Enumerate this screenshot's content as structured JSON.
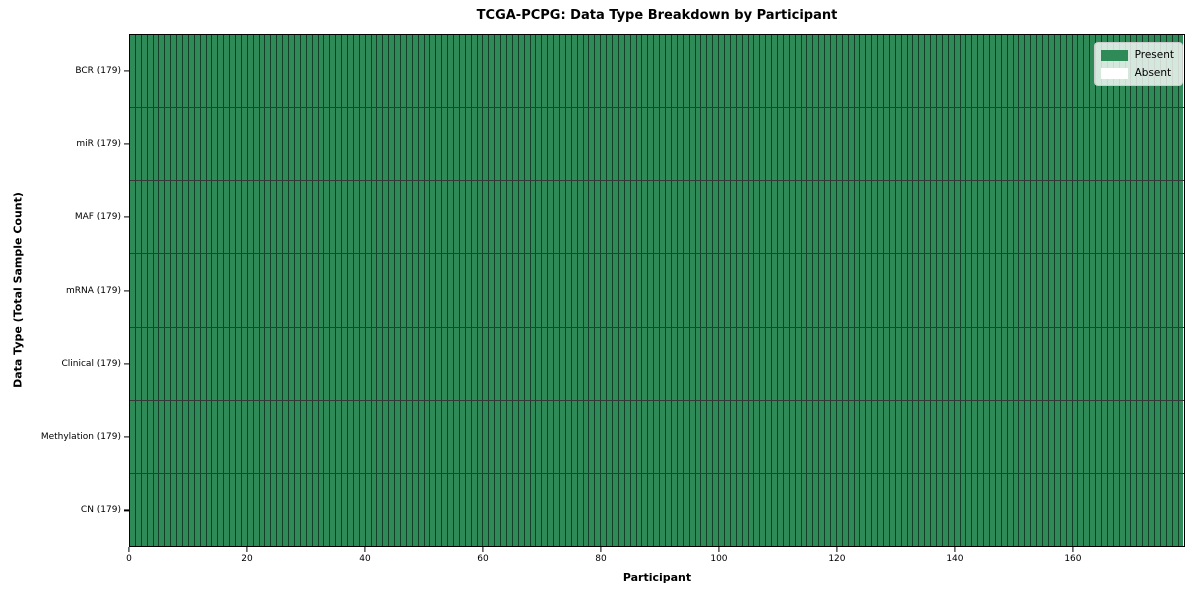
{
  "chart_data": {
    "type": "heatmap",
    "title": "TCGA-PCPG: Data Type Breakdown by Participant",
    "xlabel": "Participant",
    "ylabel": "Data Type (Total Sample Count)",
    "n_participants": 179,
    "xlim": [
      0,
      179
    ],
    "x_ticks": [
      0,
      20,
      40,
      60,
      80,
      100,
      120,
      140,
      160
    ],
    "grid": false,
    "rows": [
      {
        "label": "BCR (179)",
        "data_type": "BCR",
        "total_samples": 179,
        "present_count": 179,
        "absent_count": 0
      },
      {
        "label": "miR (179)",
        "data_type": "miR",
        "total_samples": 179,
        "present_count": 179,
        "absent_count": 0
      },
      {
        "label": "MAF (179)",
        "data_type": "MAF",
        "total_samples": 179,
        "present_count": 179,
        "absent_count": 0
      },
      {
        "label": "mRNA (179)",
        "data_type": "mRNA",
        "total_samples": 179,
        "present_count": 179,
        "absent_count": 0
      },
      {
        "label": "Clinical (179)",
        "data_type": "Clinical",
        "total_samples": 179,
        "present_count": 179,
        "absent_count": 0
      },
      {
        "label": "Methylation (179)",
        "data_type": "Methylation",
        "total_samples": 179,
        "present_count": 179,
        "absent_count": 0
      },
      {
        "label": "CN (179)",
        "data_type": "CN",
        "total_samples": 179,
        "present_count": 179,
        "absent_count": 0
      }
    ],
    "legend": {
      "position": "upper right",
      "entries": [
        {
          "label": "Present",
          "color": "#2e8b57"
        },
        {
          "label": "Absent",
          "color": "#ffffff"
        }
      ]
    },
    "colors": {
      "present": "#2e8b57",
      "absent": "#ffffff",
      "cell_edge": "rgba(0,0,0,0.55)",
      "spine": "#000000"
    }
  }
}
